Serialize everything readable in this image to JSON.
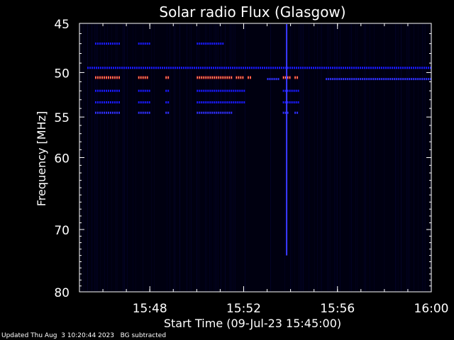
{
  "chart_data": {
    "type": "heatmap",
    "title": "Solar radio Flux (Glasgow)",
    "xlabel": "Start Time (09-Jul-23 15:45:00)",
    "ylabel": "Frequency [MHz]",
    "x_range": [
      "15:45",
      "16:00"
    ],
    "y_range": [
      45,
      80
    ],
    "y_scale": "log",
    "x_ticks": [
      "15:48",
      "15:52",
      "15:56",
      "16:00"
    ],
    "y_ticks": [
      45,
      50,
      55,
      60,
      70,
      80
    ],
    "background_color": "#000010",
    "bands": [
      {
        "freq": 47.0,
        "intensity": "low",
        "segments": [
          [
            "15:45:40",
            "15:46:40"
          ],
          [
            "15:47:30",
            "15:48:00"
          ],
          [
            "15:50:00",
            "15:51:10"
          ]
        ]
      },
      {
        "freq": 49.5,
        "intensity": "low",
        "segments": [
          [
            "15:45:20",
            "15:60:00"
          ]
        ]
      },
      {
        "freq": 50.5,
        "intensity": "high",
        "segments": [
          [
            "15:45:40",
            "15:46:40"
          ],
          [
            "15:47:30",
            "15:47:55"
          ],
          [
            "15:48:40",
            "15:48:50"
          ],
          [
            "15:50:00",
            "15:51:30"
          ],
          [
            "15:51:40",
            "15:52:00"
          ],
          [
            "15:52:10",
            "15:52:20"
          ],
          [
            "15:53:40",
            "15:54:00"
          ],
          [
            "15:54:10",
            "15:54:20"
          ]
        ]
      },
      {
        "freq": 50.7,
        "intensity": "medium",
        "segments": [
          [
            "15:53:00",
            "15:53:30"
          ],
          [
            "15:55:30",
            "15:60:00"
          ]
        ]
      },
      {
        "freq": 52.0,
        "intensity": "low",
        "segments": [
          [
            "15:45:40",
            "15:46:40"
          ],
          [
            "15:47:30",
            "15:48:00"
          ],
          [
            "15:48:40",
            "15:48:50"
          ],
          [
            "15:50:00",
            "15:52:00"
          ],
          [
            "15:53:40",
            "15:54:20"
          ]
        ]
      },
      {
        "freq": 53.3,
        "intensity": "low",
        "segments": [
          [
            "15:45:40",
            "15:46:40"
          ],
          [
            "15:47:30",
            "15:48:00"
          ],
          [
            "15:48:40",
            "15:48:50"
          ],
          [
            "15:50:00",
            "15:52:00"
          ],
          [
            "15:53:40",
            "15:54:20"
          ]
        ]
      },
      {
        "freq": 54.5,
        "intensity": "medium",
        "segments": [
          [
            "15:45:40",
            "15:46:40"
          ],
          [
            "15:47:30",
            "15:48:00"
          ],
          [
            "15:48:40",
            "15:48:50"
          ],
          [
            "15:50:00",
            "15:51:30"
          ],
          [
            "15:53:40",
            "15:53:55"
          ],
          [
            "15:54:10",
            "15:54:20"
          ]
        ]
      }
    ],
    "vertical_spikes": [
      {
        "time": "15:53:50",
        "freq_range": [
          45,
          74
        ]
      }
    ],
    "colors": {
      "low": "#1a1aff",
      "medium": "#3030ff",
      "high": "#ff3030",
      "axis": "#ffffff"
    }
  },
  "footer": {
    "updated": "Updated Thu Aug  3 10:20:44 2023",
    "note": "BG subtracted"
  }
}
